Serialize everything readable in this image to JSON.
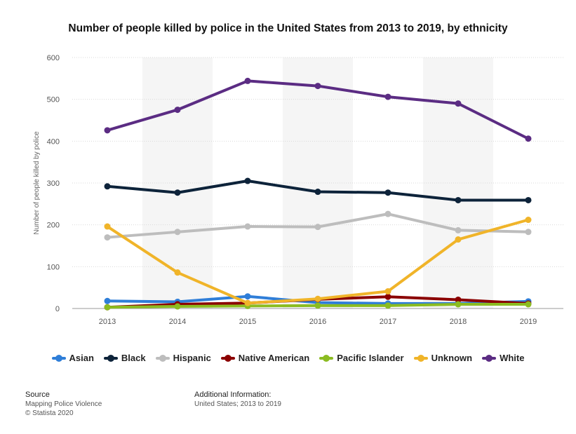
{
  "chart_data": {
    "type": "line",
    "title": "Number of people killed by police in the United States from 2013 to 2019, by ethnicity",
    "xlabel": "",
    "ylabel": "Number of people killed by police",
    "categories": [
      "2013",
      "2014",
      "2015",
      "2016",
      "2017",
      "2018",
      "2019"
    ],
    "ylim": [
      0,
      600
    ],
    "yticks": [
      0,
      100,
      200,
      300,
      400,
      500,
      600
    ],
    "grid": true,
    "legend_position": "bottom",
    "series": [
      {
        "name": "Asian",
        "color": "#2f7ed8",
        "values": [
          18,
          16,
          29,
          14,
          12,
          12,
          17
        ]
      },
      {
        "name": "Black",
        "color": "#0d233a",
        "values": [
          292,
          277,
          305,
          279,
          277,
          259,
          259
        ]
      },
      {
        "name": "Hispanic",
        "color": "#bdbdbd",
        "values": [
          170,
          183,
          196,
          195,
          226,
          187,
          183
        ]
      },
      {
        "name": "Native American",
        "color": "#8b0000",
        "values": [
          3,
          10,
          13,
          22,
          28,
          21,
          12
        ]
      },
      {
        "name": "Pacific Islander",
        "color": "#8bbc21",
        "values": [
          3,
          5,
          6,
          7,
          7,
          10,
          10
        ]
      },
      {
        "name": "Unknown",
        "color": "#f0b429",
        "values": [
          196,
          86,
          13,
          23,
          41,
          165,
          212
        ]
      },
      {
        "name": "White",
        "color": "#5b2c83",
        "values": [
          426,
          475,
          544,
          532,
          506,
          490,
          406
        ]
      }
    ]
  },
  "footer": {
    "source_heading": "Source",
    "source_line1": "Mapping Police Violence",
    "source_line2": "© Statista 2020",
    "info_heading": "Additional Information:",
    "info_line1": "United States; 2013 to 2019"
  }
}
